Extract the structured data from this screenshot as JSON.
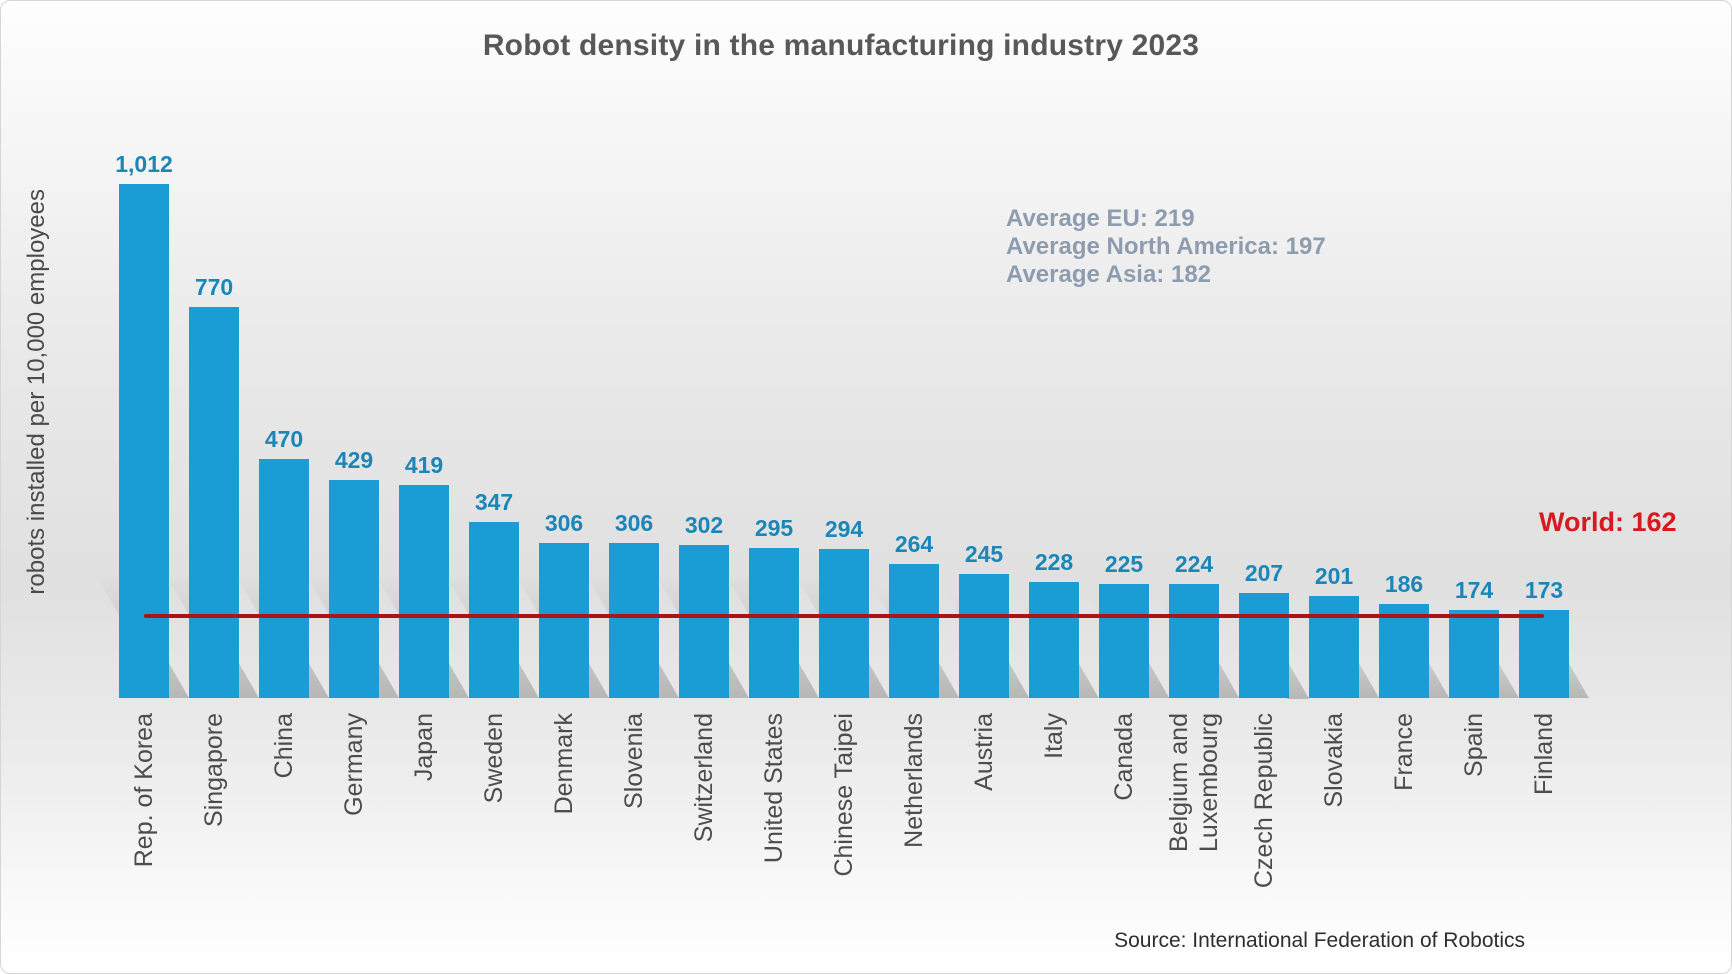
{
  "chart_data": {
    "type": "bar",
    "title": "Robot density in the manufacturing industry 2023",
    "ylabel": "robots installed per 10,000 employees",
    "categories": [
      "Rep. of Korea",
      "Singapore",
      "China",
      "Germany",
      "Japan",
      "Sweden",
      "Denmark",
      "Slovenia",
      "Switzerland",
      "United States",
      "Chinese Taipei",
      "Netherlands",
      "Austria",
      "Italy",
      "Canada",
      "Belgium and\nLuxembourg",
      "Czech Republic",
      "Slovakia",
      "France",
      "Spain",
      "Finland"
    ],
    "values": [
      1012,
      770,
      470,
      429,
      419,
      347,
      306,
      306,
      302,
      295,
      294,
      264,
      245,
      228,
      225,
      224,
      207,
      201,
      186,
      174,
      173
    ],
    "value_labels": [
      "1,012",
      "770",
      "470",
      "429",
      "419",
      "347",
      "306",
      "306",
      "302",
      "295",
      "294",
      "264",
      "245",
      "228",
      "225",
      "224",
      "207",
      "201",
      "186",
      "174",
      "173"
    ],
    "ylim": [
      0,
      1100
    ],
    "grid": false,
    "legend": "none",
    "annotations": {
      "averages": [
        "Average EU: 219",
        "Average North America: 197",
        "Average Asia: 182"
      ],
      "world_label": "World: 162",
      "world_value": 162
    },
    "source": "Source: International Federation of Robotics",
    "colors": {
      "bar": "#1a9cd4",
      "value_label_text": "#1c86b8",
      "world_line": "#ab1519",
      "world_text": "#d8191f",
      "averages_text": "#8e9cb0",
      "title_text": "#58585a",
      "category_text": "#4d4d4d"
    }
  }
}
